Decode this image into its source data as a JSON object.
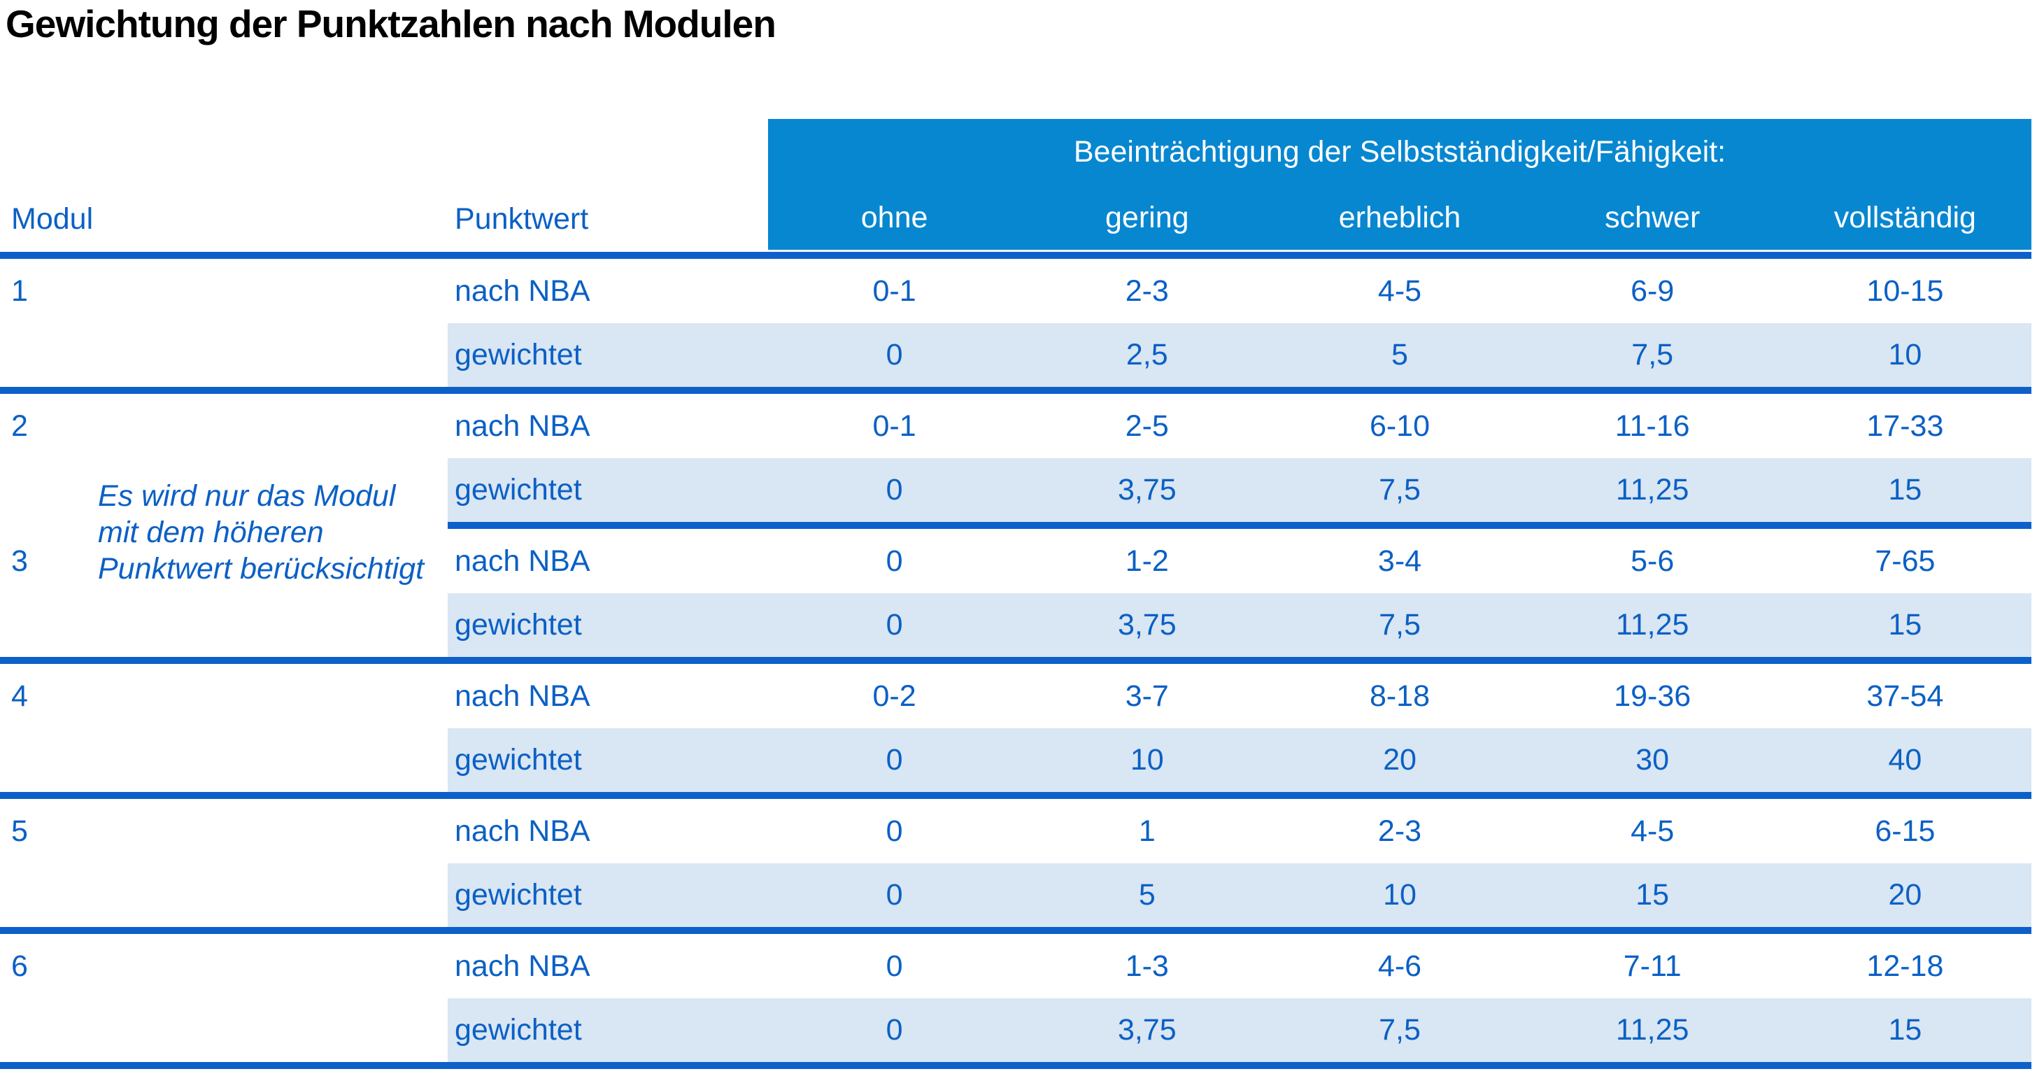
{
  "title": "Gewichtung der Punktzahlen nach Modulen",
  "table": {
    "col_modul": "Modul",
    "col_punktwert": "Punktwert",
    "group_header": "Beeinträchtigung der Selbstständigkeit/Fähigkeit:",
    "levels": [
      "ohne",
      "gering",
      "erheblich",
      "schwer",
      "vollständig"
    ],
    "row_labels": {
      "raw": "nach NBA",
      "weighted": "gewichtet"
    },
    "note_lines": [
      "Es wird nur das Modul",
      "mit dem höheren",
      "Punktwert berücksichtigt"
    ],
    "modules": [
      {
        "id": "1",
        "separator": "full",
        "nach_nba": [
          "0-1",
          "2-3",
          "4-5",
          "6-9",
          "10-15"
        ],
        "gewichtet": [
          "0",
          "2,5",
          "5",
          "7,5",
          "10"
        ]
      },
      {
        "id": "2",
        "separator": "partial",
        "nach_nba": [
          "0-1",
          "2-5",
          "6-10",
          "11-16",
          "17-33"
        ],
        "gewichtet": [
          "0",
          "3,75",
          "7,5",
          "11,25",
          "15"
        ]
      },
      {
        "id": "3",
        "separator": "full",
        "nach_nba": [
          "0",
          "1-2",
          "3-4",
          "5-6",
          "7-65"
        ],
        "gewichtet": [
          "0",
          "3,75",
          "7,5",
          "11,25",
          "15"
        ]
      },
      {
        "id": "4",
        "separator": "full",
        "nach_nba": [
          "0-2",
          "3-7",
          "8-18",
          "19-36",
          "37-54"
        ],
        "gewichtet": [
          "0",
          "10",
          "20",
          "30",
          "40"
        ]
      },
      {
        "id": "5",
        "separator": "full",
        "nach_nba": [
          "0",
          "1",
          "2-3",
          "4-5",
          "6-15"
        ],
        "gewichtet": [
          "0",
          "5",
          "10",
          "15",
          "20"
        ]
      },
      {
        "id": "6",
        "separator": "full",
        "nach_nba": [
          "0",
          "1-3",
          "4-6",
          "7-11",
          "12-18"
        ],
        "gewichtet": [
          "0",
          "3,75",
          "7,5",
          "11,25",
          "15"
        ]
      }
    ]
  },
  "colors": {
    "header_bg": "#0887d1",
    "separator_line": "#0d60c9",
    "weighted_row_bg": "#d9e6f3",
    "text_blue": "#0b60c5",
    "title_text": "#000000"
  }
}
